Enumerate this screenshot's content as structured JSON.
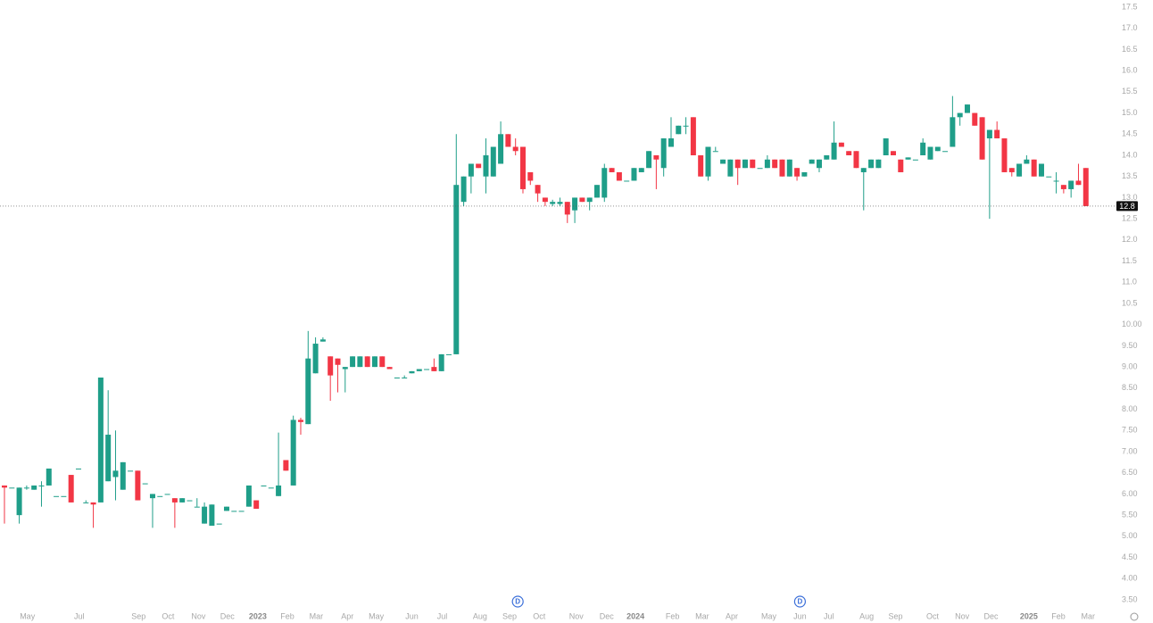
{
  "chart_data": {
    "type": "candlestick",
    "up_color": "#1f9e89",
    "down_color": "#f23645",
    "ylim": [
      3.5,
      17.5
    ],
    "yticks": [
      {
        "value": 3.5,
        "label": "3.50"
      },
      {
        "value": 4,
        "label": "4.00"
      },
      {
        "value": 4.5,
        "label": "4.50"
      },
      {
        "value": 5,
        "label": "5.00"
      },
      {
        "value": 5.5,
        "label": "5.50"
      },
      {
        "value": 6,
        "label": "6.00"
      },
      {
        "value": 6.5,
        "label": "6.50"
      },
      {
        "value": 7,
        "label": "7.00"
      },
      {
        "value": 7.5,
        "label": "7.50"
      },
      {
        "value": 8,
        "label": "8.00"
      },
      {
        "value": 8.5,
        "label": "8.50"
      },
      {
        "value": 9,
        "label": "9.00"
      },
      {
        "value": 9.5,
        "label": "9.50"
      },
      {
        "value": 10,
        "label": "10.00"
      },
      10.5,
      {
        "value": 11,
        "label": "11.0"
      },
      11.5,
      {
        "value": 12,
        "label": "12.0"
      },
      12.5,
      {
        "value": 13,
        "label": "13.0"
      },
      13.5,
      {
        "value": 14,
        "label": "14.0"
      },
      14.5,
      {
        "value": 15,
        "label": "15.0"
      },
      15.5,
      {
        "value": 16,
        "label": "16.0"
      },
      16.5,
      {
        "value": 17,
        "label": "17.0"
      },
      17.5
    ],
    "xlim": [
      -0.6,
      149.4
    ],
    "xticks": [
      {
        "value": 3.1,
        "label": "May"
      },
      {
        "value": 10.1,
        "label": "Jul"
      },
      {
        "value": 18.1,
        "label": "Sep"
      },
      {
        "value": 22.1,
        "label": "Oct"
      },
      {
        "value": 26.2,
        "label": "Nov"
      },
      {
        "value": 30.1,
        "label": "Dec"
      },
      {
        "value": 34.2,
        "label": "2023"
      },
      {
        "value": 38.2,
        "label": "Feb"
      },
      {
        "value": 42.1,
        "label": "Mar"
      },
      {
        "value": 46.3,
        "label": "Apr"
      },
      {
        "value": 50.2,
        "label": "May"
      },
      {
        "value": 55.0,
        "label": "Jun"
      },
      {
        "value": 59.1,
        "label": "Jul"
      },
      {
        "value": 64.2,
        "label": "Aug"
      },
      {
        "value": 68.2,
        "label": "Sep"
      },
      {
        "value": 72.2,
        "label": "Oct"
      },
      {
        "value": 77.2,
        "label": "Nov"
      },
      {
        "value": 81.3,
        "label": "Dec"
      },
      {
        "value": 85.2,
        "label": "2024"
      },
      {
        "value": 90.2,
        "label": "Feb"
      },
      {
        "value": 94.2,
        "label": "Mar"
      },
      {
        "value": 98.2,
        "label": "Apr"
      },
      {
        "value": 103.2,
        "label": "May"
      },
      {
        "value": 107.4,
        "label": "Jun"
      },
      {
        "value": 111.3,
        "label": "Jul"
      },
      {
        "value": 116.4,
        "label": "Aug"
      },
      {
        "value": 120.3,
        "label": "Sep"
      },
      {
        "value": 125.3,
        "label": "Oct"
      },
      {
        "value": 129.3,
        "label": "Nov"
      },
      {
        "value": 133.2,
        "label": "Dec"
      },
      {
        "value": 138.3,
        "label": "2025"
      },
      {
        "value": 142.3,
        "label": "Feb"
      },
      {
        "value": 146.3,
        "label": "Mar"
      }
    ],
    "events": [
      {
        "x": 69.3,
        "label": "D"
      },
      {
        "x": 107.4,
        "label": "D"
      }
    ],
    "last_price": 12.8,
    "ohlc": [
      [
        6.2,
        6.2,
        5.3,
        6.15
      ],
      [
        6.15,
        6.15,
        6.15,
        6.15
      ],
      [
        5.5,
        6.15,
        5.3,
        6.15
      ],
      [
        6.15,
        6.2,
        6.1,
        6.15
      ],
      [
        6.1,
        6.2,
        6.1,
        6.2
      ],
      [
        6.2,
        6.3,
        5.7,
        6.2
      ],
      [
        6.2,
        6.6,
        6.2,
        6.6
      ],
      [
        5.95,
        5.95,
        5.95,
        5.95
      ],
      [
        5.95,
        5.95,
        5.95,
        5.95
      ],
      [
        6.45,
        6.45,
        5.8,
        5.8
      ],
      [
        6.6,
        6.6,
        6.6,
        6.6
      ],
      [
        5.8,
        5.85,
        5.8,
        5.8
      ],
      [
        5.8,
        5.8,
        5.2,
        5.75
      ],
      [
        5.8,
        8.75,
        5.8,
        8.75
      ],
      [
        6.3,
        8.45,
        6.3,
        7.4
      ],
      [
        6.4,
        7.5,
        5.85,
        6.55
      ],
      [
        6.1,
        6.75,
        6.1,
        6.75
      ],
      [
        6.55,
        6.55,
        6.55,
        6.55
      ],
      [
        6.55,
        6.55,
        5.85,
        5.85
      ],
      [
        6.25,
        6.25,
        6.25,
        6.25
      ],
      [
        5.9,
        6.0,
        5.2,
        6.0
      ],
      [
        5.95,
        5.95,
        5.95,
        5.95
      ],
      [
        6.0,
        6.0,
        6.0,
        6.0
      ],
      [
        5.9,
        5.9,
        5.2,
        5.8
      ],
      [
        5.8,
        5.9,
        5.8,
        5.9
      ],
      [
        5.85,
        5.85,
        5.85,
        5.85
      ],
      [
        5.7,
        5.9,
        5.7,
        5.7
      ],
      [
        5.3,
        5.8,
        5.3,
        5.7
      ],
      [
        5.25,
        5.75,
        5.25,
        5.75
      ],
      [
        5.3,
        5.3,
        5.3,
        5.3
      ],
      [
        5.6,
        5.7,
        5.6,
        5.7
      ],
      [
        5.6,
        5.6,
        5.6,
        5.6
      ],
      [
        5.6,
        5.6,
        5.6,
        5.6
      ],
      [
        5.7,
        6.2,
        5.7,
        6.2
      ],
      [
        5.85,
        5.85,
        5.65,
        5.65
      ],
      [
        6.2,
        6.2,
        6.2,
        6.2
      ],
      [
        6.15,
        6.15,
        6.15,
        6.15
      ],
      [
        5.95,
        7.45,
        5.95,
        6.2
      ],
      [
        6.8,
        6.8,
        6.55,
        6.55
      ],
      [
        6.2,
        7.85,
        6.2,
        7.75
      ],
      [
        7.75,
        7.8,
        7.4,
        7.7
      ],
      [
        7.65,
        9.85,
        7.65,
        9.2
      ],
      [
        8.85,
        9.7,
        8.85,
        9.55
      ],
      [
        9.6,
        9.7,
        9.6,
        9.65
      ],
      [
        9.25,
        9.25,
        8.2,
        8.8
      ],
      [
        9.2,
        9.2,
        8.4,
        9.05
      ],
      [
        8.95,
        9.0,
        8.4,
        9.0
      ],
      [
        9.0,
        9.25,
        9.0,
        9.25
      ],
      [
        9.0,
        9.25,
        9.0,
        9.25
      ],
      [
        9.25,
        9.25,
        9.0,
        9.0
      ],
      [
        9.0,
        9.25,
        9.0,
        9.25
      ],
      [
        9.25,
        9.25,
        9.0,
        9.0
      ],
      [
        9.0,
        9.0,
        8.95,
        8.95
      ],
      [
        8.75,
        8.75,
        8.75,
        8.75
      ],
      [
        8.75,
        8.8,
        8.75,
        8.75
      ],
      [
        8.85,
        8.9,
        8.85,
        8.9
      ],
      [
        8.9,
        8.95,
        8.9,
        8.95
      ],
      [
        8.95,
        8.95,
        8.95,
        8.95
      ],
      [
        9.0,
        9.2,
        8.9,
        8.9
      ],
      [
        8.9,
        9.3,
        8.9,
        9.3
      ],
      [
        9.3,
        9.3,
        9.3,
        9.3
      ],
      [
        9.3,
        14.5,
        9.3,
        13.3
      ],
      [
        12.9,
        13.5,
        12.8,
        13.5
      ],
      [
        13.5,
        13.8,
        13.1,
        13.8
      ],
      [
        13.8,
        13.8,
        13.7,
        13.7
      ],
      [
        13.5,
        14.4,
        13.1,
        14.0
      ],
      [
        13.5,
        14.2,
        13.5,
        14.2
      ],
      [
        13.8,
        14.8,
        13.8,
        14.5
      ],
      [
        14.5,
        14.5,
        14.2,
        14.2
      ],
      [
        14.2,
        14.4,
        14.0,
        14.1
      ],
      [
        14.2,
        14.2,
        13.1,
        13.2
      ],
      [
        13.6,
        13.6,
        13.3,
        13.4
      ],
      [
        13.3,
        13.3,
        12.9,
        13.1
      ],
      [
        13.0,
        13.0,
        12.8,
        12.9
      ],
      [
        12.85,
        12.95,
        12.8,
        12.9
      ],
      [
        12.85,
        13.0,
        12.8,
        12.9
      ],
      [
        12.9,
        12.9,
        12.4,
        12.6
      ],
      [
        12.7,
        13.0,
        12.4,
        13.0
      ],
      [
        13.0,
        13.0,
        12.9,
        12.9
      ],
      [
        12.9,
        13.0,
        12.7,
        13.0
      ],
      [
        13.0,
        13.3,
        13.0,
        13.3
      ],
      [
        13.0,
        13.8,
        12.9,
        13.7
      ],
      [
        13.7,
        13.7,
        13.6,
        13.6
      ],
      [
        13.6,
        13.6,
        13.4,
        13.4
      ],
      [
        13.4,
        13.4,
        13.4,
        13.4
      ],
      [
        13.4,
        13.7,
        13.4,
        13.7
      ],
      [
        13.6,
        13.7,
        13.6,
        13.7
      ],
      [
        13.7,
        14.1,
        13.7,
        14.1
      ],
      [
        14.0,
        14.0,
        13.2,
        13.9
      ],
      [
        13.7,
        14.4,
        13.5,
        14.4
      ],
      [
        14.2,
        14.9,
        14.2,
        14.4
      ],
      [
        14.5,
        14.7,
        14.5,
        14.7
      ],
      [
        14.7,
        14.9,
        14.5,
        14.7
      ],
      [
        14.9,
        14.9,
        14.0,
        14.0
      ],
      [
        14.0,
        14.0,
        13.5,
        13.5
      ],
      [
        13.5,
        14.2,
        13.4,
        14.2
      ],
      [
        14.1,
        14.2,
        14.1,
        14.1
      ],
      [
        13.8,
        13.9,
        13.8,
        13.9
      ],
      [
        13.5,
        13.9,
        13.5,
        13.9
      ],
      [
        13.9,
        13.9,
        13.3,
        13.7
      ],
      [
        13.7,
        13.9,
        13.7,
        13.9
      ],
      [
        13.9,
        13.9,
        13.7,
        13.7
      ],
      [
        13.7,
        13.7,
        13.7,
        13.7
      ],
      [
        13.7,
        14.0,
        13.7,
        13.9
      ],
      [
        13.9,
        13.9,
        13.7,
        13.7
      ],
      [
        13.9,
        13.9,
        13.5,
        13.5
      ],
      [
        13.5,
        13.9,
        13.5,
        13.9
      ],
      [
        13.7,
        13.7,
        13.4,
        13.5
      ],
      [
        13.5,
        13.6,
        13.5,
        13.6
      ],
      [
        13.8,
        13.9,
        13.8,
        13.9
      ],
      [
        13.7,
        13.9,
        13.6,
        13.9
      ],
      [
        13.9,
        14.0,
        13.9,
        14.0
      ],
      [
        13.9,
        14.8,
        13.9,
        14.3
      ],
      [
        14.3,
        14.3,
        14.2,
        14.2
      ],
      [
        14.1,
        14.1,
        14.0,
        14.0
      ],
      [
        14.1,
        14.1,
        13.7,
        13.7
      ],
      [
        13.6,
        13.7,
        12.7,
        13.7
      ],
      [
        13.7,
        13.9,
        13.7,
        13.9
      ],
      [
        13.7,
        13.9,
        13.7,
        13.9
      ],
      [
        14.0,
        14.4,
        14.0,
        14.4
      ],
      [
        14.1,
        14.1,
        14.0,
        14.0
      ],
      [
        13.9,
        13.9,
        13.6,
        13.6
      ],
      [
        13.9,
        13.95,
        13.9,
        13.95
      ],
      [
        13.9,
        13.9,
        13.9,
        13.9
      ],
      [
        14.0,
        14.4,
        14.0,
        14.3
      ],
      [
        13.9,
        14.2,
        13.9,
        14.2
      ],
      [
        14.1,
        14.2,
        14.1,
        14.2
      ],
      [
        14.1,
        14.1,
        14.1,
        14.1
      ],
      [
        14.2,
        15.4,
        14.2,
        14.9
      ],
      [
        14.9,
        15.0,
        14.7,
        15.0
      ],
      [
        15.0,
        15.2,
        15.0,
        15.2
      ],
      [
        15.0,
        15.0,
        14.7,
        14.7
      ],
      [
        14.9,
        14.9,
        13.9,
        13.9
      ],
      [
        14.4,
        14.6,
        12.5,
        14.6
      ],
      [
        14.6,
        14.8,
        14.4,
        14.4
      ],
      [
        14.4,
        14.4,
        13.6,
        13.6
      ],
      [
        13.7,
        13.7,
        13.5,
        13.6
      ],
      [
        13.5,
        13.8,
        13.5,
        13.8
      ],
      [
        13.8,
        14.0,
        13.8,
        13.9
      ],
      [
        13.9,
        13.9,
        13.5,
        13.5
      ],
      [
        13.5,
        13.8,
        13.5,
        13.8
      ],
      [
        13.5,
        13.5,
        13.5,
        13.5
      ],
      [
        13.4,
        13.6,
        13.1,
        13.4
      ],
      [
        13.3,
        13.3,
        13.1,
        13.2
      ],
      [
        13.2,
        13.4,
        13.0,
        13.4
      ],
      [
        13.4,
        13.8,
        13.3,
        13.3
      ],
      [
        13.7,
        13.7,
        12.8,
        12.8
      ]
    ]
  }
}
